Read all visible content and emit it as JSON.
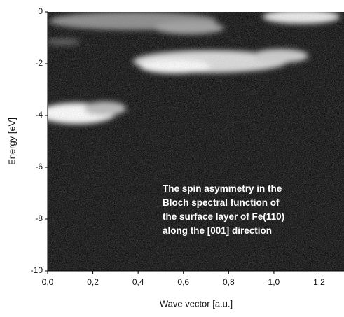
{
  "chart_data": {
    "type": "heatmap",
    "xlabel": "Wave vector [a.u.]",
    "ylabel": "Energy [eV]",
    "annotation": [
      "The spin asymmetry in the",
      "Bloch spectral function of",
      "the surface layer of Fe(110)",
      "along the [001] direction"
    ],
    "xlim": [
      0,
      1.31
    ],
    "ylim": [
      -10,
      0
    ],
    "xticks": [
      {
        "value": 0,
        "label": "0,0"
      },
      {
        "value": 0.2,
        "label": "0,2"
      },
      {
        "value": 0.4,
        "label": "0,4"
      },
      {
        "value": 0.6,
        "label": "0,6"
      },
      {
        "value": 0.8,
        "label": "0,8"
      },
      {
        "value": 1.0,
        "label": "1,0"
      },
      {
        "value": 1.2,
        "label": "1,2"
      }
    ],
    "yticks": [
      0,
      -2,
      -4,
      -6,
      -8,
      -10
    ]
  }
}
